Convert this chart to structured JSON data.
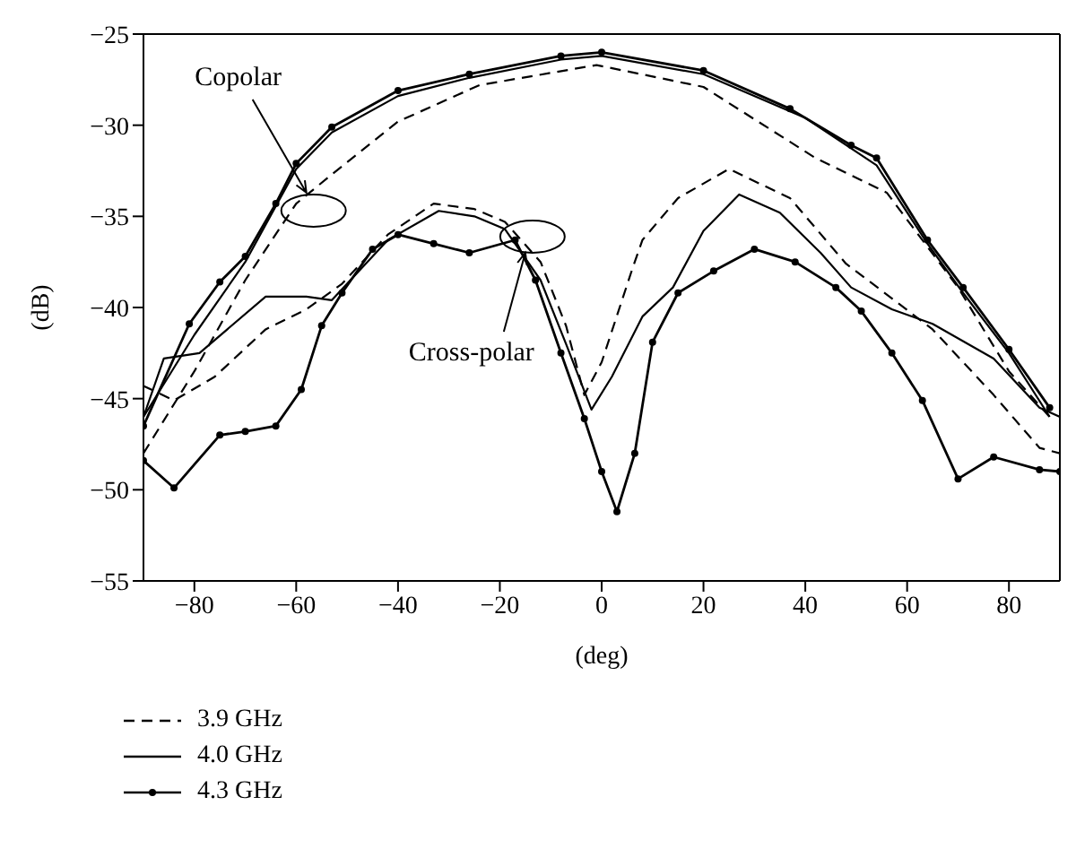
{
  "chart_data": {
    "type": "line",
    "xlabel": "(deg)",
    "ylabel": "(dB)",
    "xlim": [
      -90,
      90
    ],
    "xticks": [
      -80,
      -60,
      -40,
      -20,
      0,
      20,
      40,
      60,
      80
    ],
    "ylim": [
      -55,
      -25
    ],
    "yticks": [
      -55,
      -50,
      -45,
      -40,
      -35,
      -30,
      -25
    ],
    "legend": "bottom",
    "annotations": [
      {
        "text": "Copolar",
        "x": -58,
        "y": -33.7
      },
      {
        "text": "Cross-polar",
        "x": -15,
        "y": -37
      }
    ],
    "series": [
      {
        "name": "3.9 GHz",
        "color": "#000000",
        "line_style": "dashed",
        "marker": "none",
        "x": [
          -90,
          -80,
          -70,
          -60,
          -53,
          -40,
          -24,
          -1,
          20,
          42,
          56,
          70,
          80,
          88
        ],
        "values": [
          -48,
          -43.5,
          -38.5,
          -34.3,
          -32.7,
          -29.8,
          -27.8,
          -26.7,
          -27.9,
          -31.8,
          -33.7,
          -38.9,
          -43.5,
          -46
        ]
      },
      {
        "name": "4.0 GHz",
        "color": "#000000",
        "line_style": "solid",
        "marker": "none",
        "x": [
          -90,
          -80,
          -70,
          -60,
          -53,
          -40,
          -26,
          -8,
          0,
          20,
          40,
          54,
          64,
          71,
          80,
          88
        ],
        "values": [
          -46,
          -41.5,
          -37.5,
          -32.4,
          -30.4,
          -28.4,
          -27.4,
          -26.4,
          -26.2,
          -27.2,
          -29.6,
          -32.2,
          -36.5,
          -39.2,
          -42.5,
          -46
        ]
      },
      {
        "name": "4.3 GHz",
        "color": "#000000",
        "line_style": "solid",
        "marker": "circle",
        "x": [
          -90,
          -81,
          -75,
          -70,
          -64,
          -60,
          -53,
          -40,
          -26,
          -8,
          0,
          20,
          37,
          49,
          54,
          64,
          71,
          80,
          88
        ],
        "values": [
          -46.5,
          -40.9,
          -38.6,
          -37.2,
          -34.3,
          -32.1,
          -30.1,
          -28.1,
          -27.2,
          -26.2,
          -26,
          -27,
          -29.1,
          -31.1,
          -31.8,
          -36.3,
          -38.9,
          -42.3,
          -45.5
        ]
      },
      {
        "color": "#000000",
        "line_style": "dashed",
        "marker": "none",
        "x": [
          -90,
          -84,
          -76,
          -66,
          -58,
          -51,
          -42,
          -33,
          -25,
          -19,
          -12,
          -7,
          -3.4,
          0,
          6,
          8,
          15,
          25,
          37,
          48,
          57,
          65,
          77,
          86,
          90
        ],
        "values": [
          -44.3,
          -45.1,
          -43.8,
          -41.2,
          -40.1,
          -38.7,
          -36,
          -34.3,
          -34.6,
          -35.3,
          -37.5,
          -41,
          -44.8,
          -43,
          -37.9,
          -36.3,
          -34,
          -32.4,
          -34,
          -37.6,
          -39.5,
          -41.2,
          -44.8,
          -47.7,
          -48
        ]
      },
      {
        "color": "#000000",
        "line_style": "solid",
        "marker": "none",
        "x": [
          -90,
          -86,
          -79,
          -66,
          -58,
          -53,
          -42,
          -32,
          -25,
          -19,
          -12,
          -7,
          -2,
          2,
          8,
          14,
          20,
          27,
          35,
          43,
          49,
          57,
          65,
          77,
          86,
          90
        ],
        "values": [
          -46,
          -42.8,
          -42.5,
          -39.4,
          -39.4,
          -39.6,
          -36.3,
          -34.7,
          -35,
          -35.7,
          -38.5,
          -42,
          -45.6,
          -43.8,
          -40.5,
          -38.9,
          -35.8,
          -33.8,
          -34.8,
          -37,
          -38.9,
          -40.1,
          -40.9,
          -42.8,
          -45.5,
          -46
        ]
      },
      {
        "color": "#000000",
        "line_style": "solid",
        "marker": "circle",
        "x": [
          -90,
          -84,
          -75,
          -70,
          -64,
          -59,
          -55,
          -51,
          -45,
          -40,
          -33,
          -26,
          -17,
          -13,
          -8,
          -3.4,
          0,
          3,
          6.5,
          10,
          15,
          22,
          30,
          38,
          46,
          51,
          57,
          63,
          70,
          77,
          86,
          90
        ],
        "values": [
          -48.4,
          -49.9,
          -47,
          -46.8,
          -46.5,
          -44.5,
          -41,
          -39.2,
          -36.8,
          -36,
          -36.5,
          -37,
          -36.3,
          -38.5,
          -42.5,
          -46.1,
          -49,
          -51.2,
          -48,
          -41.9,
          -39.2,
          -38,
          -36.8,
          -37.5,
          -38.9,
          -40.2,
          -42.5,
          -45.1,
          -49.4,
          -48.2,
          -48.9,
          -49
        ]
      }
    ]
  }
}
